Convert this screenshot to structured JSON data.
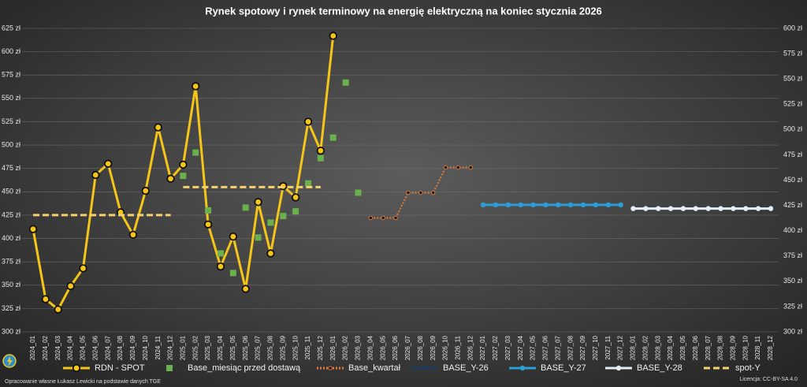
{
  "chart_data": {
    "type": "line",
    "title": "Rynek spotowy i rynek terminowy na energię elektryczną na koniec stycznia 2026",
    "source": "Opracowanie własne Łukasz Lewicki na podstawie danych TGE",
    "license": "Licencja: CC-BY-SA 4.0",
    "categories": [
      "2024_01",
      "2024_02",
      "2024_03",
      "2024_04",
      "2024_05",
      "2024_06",
      "2024_07",
      "2024_08",
      "2024_09",
      "2024_10",
      "2024_11",
      "2024_12",
      "2025_01",
      "2025_02",
      "2025_03",
      "2025_04",
      "2025_05",
      "2025_06",
      "2025_07",
      "2025_08",
      "2025_09",
      "2025_10",
      "2025_11",
      "2025_12",
      "2026_01",
      "2026_02",
      "2026_03",
      "2026_04",
      "2026_05",
      "2026_06",
      "2026_07",
      "2026_08",
      "2026_09",
      "2026_10",
      "2026_11",
      "2026_12",
      "2027_01",
      "2027_02",
      "2027_03",
      "2027_04",
      "2027_05",
      "2027_06",
      "2027_07",
      "2027_08",
      "2027_09",
      "2027_10",
      "2027_11",
      "2027_12",
      "2028_01",
      "2028_02",
      "2028_03",
      "2028_04",
      "2028_05",
      "2028_06",
      "2028_07",
      "2028_08",
      "2028_09",
      "2028_10",
      "2028_11",
      "2028_12"
    ],
    "ylim": [
      300,
      625
    ],
    "yticks": [
      {
        "value": 300,
        "label": "300 zł"
      },
      {
        "value": 325,
        "label": "325 zł"
      },
      {
        "value": 350,
        "label": "350 zł"
      },
      {
        "value": 375,
        "label": "375 zł"
      },
      {
        "value": 400,
        "label": "400 zł"
      },
      {
        "value": 425,
        "label": "425 zł"
      },
      {
        "value": 450,
        "label": "450 zł"
      },
      {
        "value": 475,
        "label": "475 zł"
      },
      {
        "value": 500,
        "label": "500 zł"
      },
      {
        "value": 525,
        "label": "525 zł"
      },
      {
        "value": 550,
        "label": "550 zł"
      },
      {
        "value": 575,
        "label": "575 zł"
      },
      {
        "value": 600,
        "label": "600 zł"
      },
      {
        "value": 625,
        "label": "625 zł"
      }
    ],
    "y2lim": [
      300,
      600
    ],
    "y2ticks": [
      {
        "value": 300,
        "label": "300 zł"
      },
      {
        "value": 325,
        "label": "325 zł"
      },
      {
        "value": 350,
        "label": "350 zł"
      },
      {
        "value": 375,
        "label": "375 zł"
      },
      {
        "value": 400,
        "label": "400 zł"
      },
      {
        "value": 425,
        "label": "425 zł"
      },
      {
        "value": 450,
        "label": "450 zł"
      },
      {
        "value": 475,
        "label": "475 zł"
      },
      {
        "value": 500,
        "label": "500 zł"
      },
      {
        "value": 525,
        "label": "525 zł"
      },
      {
        "value": 550,
        "label": "550 zł"
      },
      {
        "value": 575,
        "label": "575 zł"
      },
      {
        "value": 600,
        "label": "600 zł"
      }
    ],
    "grid": true,
    "legend": "bottom",
    "series": [
      {
        "name": "RDN - SPOT",
        "color": "#f5c518",
        "style": "line-marker",
        "values": [
          410,
          335,
          324,
          349,
          368,
          468,
          480,
          428,
          404,
          451,
          519,
          464,
          479,
          563,
          415,
          370,
          402,
          346,
          439,
          384,
          456,
          444,
          525,
          494,
          617,
          null,
          null,
          null,
          null,
          null,
          null,
          null,
          null,
          null,
          null,
          null,
          null,
          null,
          null,
          null,
          null,
          null,
          null,
          null,
          null,
          null,
          null,
          null,
          null,
          null,
          null,
          null,
          null,
          null,
          null,
          null,
          null,
          null,
          null,
          null
        ]
      },
      {
        "name": "Base_miesiąc przed dostawą",
        "color": "#6ab04c",
        "style": "square",
        "values": [
          null,
          null,
          null,
          null,
          null,
          null,
          null,
          null,
          null,
          null,
          null,
          null,
          467,
          492,
          430,
          384,
          363,
          433,
          401,
          417,
          424,
          429,
          459,
          486,
          508,
          567,
          449,
          null,
          null,
          null,
          null,
          null,
          null,
          null,
          null,
          null,
          null,
          null,
          null,
          null,
          null,
          null,
          null,
          null,
          null,
          null,
          null,
          null,
          null,
          null,
          null,
          null,
          null,
          null,
          null,
          null,
          null,
          null,
          null,
          null
        ]
      },
      {
        "name": "Base_kwartał",
        "color": "#e07b39",
        "style": "dotted",
        "values": [
          null,
          null,
          null,
          null,
          null,
          null,
          null,
          null,
          null,
          null,
          null,
          null,
          null,
          null,
          null,
          null,
          null,
          null,
          null,
          null,
          null,
          null,
          null,
          null,
          null,
          null,
          null,
          422,
          422,
          422,
          449,
          449,
          449,
          476,
          476,
          476,
          null,
          null,
          null,
          null,
          null,
          null,
          null,
          null,
          null,
          null,
          null,
          null,
          null,
          null,
          null,
          null,
          null,
          null,
          null,
          null,
          null,
          null,
          null,
          null
        ]
      },
      {
        "name": "BASE_Y-26",
        "color": "#1f3a5f",
        "style": "line-dot",
        "values": [
          null,
          null,
          null,
          null,
          null,
          null,
          null,
          null,
          null,
          null,
          null,
          null,
          null,
          null,
          null,
          null,
          null,
          null,
          null,
          null,
          null,
          null,
          null,
          null,
          null,
          null,
          null,
          null,
          null,
          null,
          null,
          null,
          null,
          null,
          null,
          null,
          null,
          null,
          null,
          null,
          null,
          null,
          null,
          null,
          null,
          null,
          null,
          null,
          null,
          null,
          null,
          null,
          null,
          null,
          null,
          null,
          null,
          null,
          null,
          null
        ]
      },
      {
        "name": "BASE_Y-27",
        "color": "#2a9fd6",
        "style": "line-dot",
        "values": [
          null,
          null,
          null,
          null,
          null,
          null,
          null,
          null,
          null,
          null,
          null,
          null,
          null,
          null,
          null,
          null,
          null,
          null,
          null,
          null,
          null,
          null,
          null,
          null,
          null,
          null,
          null,
          null,
          null,
          null,
          null,
          null,
          null,
          null,
          null,
          null,
          436,
          436,
          436,
          436,
          436,
          436,
          436,
          436,
          436,
          436,
          436,
          436,
          null,
          null,
          null,
          null,
          null,
          null,
          null,
          null,
          null,
          null,
          null,
          null
        ]
      },
      {
        "name": "BASE_Y-28",
        "color": "#e4eef8",
        "style": "line-dot",
        "values": [
          null,
          null,
          null,
          null,
          null,
          null,
          null,
          null,
          null,
          null,
          null,
          null,
          null,
          null,
          null,
          null,
          null,
          null,
          null,
          null,
          null,
          null,
          null,
          null,
          null,
          null,
          null,
          null,
          null,
          null,
          null,
          null,
          null,
          null,
          null,
          null,
          null,
          null,
          null,
          null,
          null,
          null,
          null,
          null,
          null,
          null,
          null,
          null,
          432,
          432,
          432,
          432,
          432,
          432,
          432,
          432,
          432,
          432,
          432,
          432
        ]
      },
      {
        "name": "spot-Y",
        "color": "#f7d26b",
        "style": "dashed",
        "values": [
          425,
          425,
          425,
          425,
          425,
          425,
          425,
          425,
          425,
          425,
          425,
          425,
          455,
          455,
          455,
          455,
          455,
          455,
          455,
          455,
          455,
          455,
          455,
          455,
          null,
          null,
          null,
          null,
          null,
          null,
          null,
          null,
          null,
          null,
          null,
          null,
          null,
          null,
          null,
          null,
          null,
          null,
          null,
          null,
          null,
          null,
          null,
          null,
          null,
          null,
          null,
          null,
          null,
          null,
          null,
          null,
          null,
          null,
          null,
          null
        ]
      }
    ]
  }
}
